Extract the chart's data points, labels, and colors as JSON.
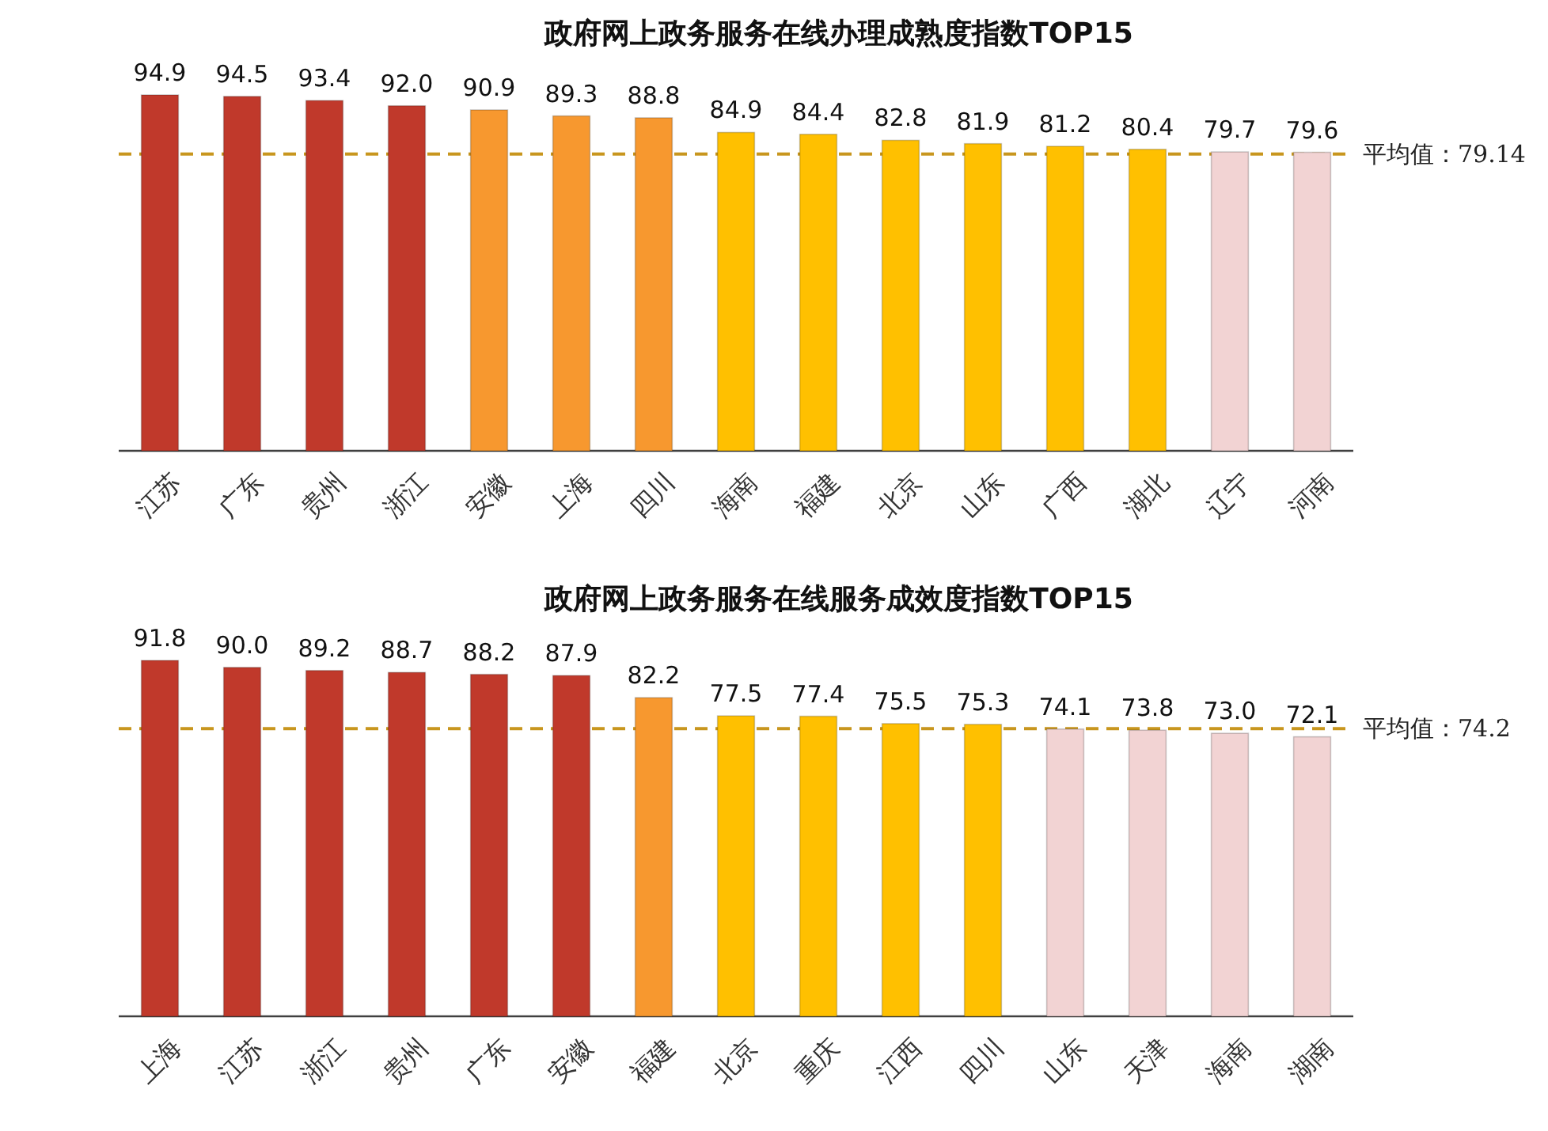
{
  "chart_data": [
    {
      "type": "bar",
      "title": "政府网上政务服务在线办理成熟度指数TOP15",
      "categories": [
        "江苏",
        "广东",
        "贵州",
        "浙江",
        "安徽",
        "上海",
        "四川",
        "海南",
        "福建",
        "北京",
        "山东",
        "广西",
        "湖北",
        "辽宁",
        "河南"
      ],
      "values": [
        94.9,
        94.5,
        93.4,
        92.0,
        90.9,
        89.3,
        88.8,
        84.9,
        84.4,
        82.8,
        81.9,
        81.2,
        80.4,
        79.7,
        79.6
      ],
      "value_labels": [
        "94.9",
        "94.5",
        "93.4",
        "92.0",
        "90.9",
        "89.3",
        "88.8",
        "84.9",
        "84.4",
        "82.8",
        "81.9",
        "81.2",
        "80.4",
        "79.7",
        "79.6"
      ],
      "colors": [
        "#c0392b",
        "#c0392b",
        "#c0392b",
        "#c0392b",
        "#f7982f",
        "#f7982f",
        "#f7982f",
        "#ffc000",
        "#ffc000",
        "#ffc000",
        "#ffc000",
        "#ffc000",
        "#ffc000",
        "#f2d3d3",
        "#f2d3d3"
      ],
      "ref_lines": [
        {
          "axis": "y",
          "value": 79.14,
          "label": "平均值：79.14",
          "color": "#c8961e",
          "line_style": "dashed"
        }
      ]
    },
    {
      "type": "bar",
      "title": "政府网上政务服务在线服务成效度指数TOP15",
      "categories": [
        "上海",
        "江苏",
        "浙江",
        "贵州",
        "广东",
        "安徽",
        "福建",
        "北京",
        "重庆",
        "江西",
        "四川",
        "山东",
        "天津",
        "海南",
        "湖南"
      ],
      "values": [
        91.8,
        90.0,
        89.2,
        88.7,
        88.2,
        87.9,
        82.2,
        77.5,
        77.4,
        75.5,
        75.3,
        74.1,
        73.8,
        73.0,
        72.1
      ],
      "value_labels": [
        "91.8",
        "90.0",
        "89.2",
        "88.7",
        "88.2",
        "87.9",
        "82.2",
        "77.5",
        "77.4",
        "75.5",
        "75.3",
        "74.1",
        "73.8",
        "73.0",
        "72.1"
      ],
      "colors": [
        "#c0392b",
        "#c0392b",
        "#c0392b",
        "#c0392b",
        "#c0392b",
        "#c0392b",
        "#f7982f",
        "#ffc000",
        "#ffc000",
        "#ffc000",
        "#ffc000",
        "#f2d3d3",
        "#f2d3d3",
        "#f2d3d3",
        "#f2d3d3"
      ],
      "ref_lines": [
        {
          "axis": "y",
          "value": 74.2,
          "label": "平均值：74.2",
          "color": "#c8961e",
          "line_style": "dashed"
        }
      ]
    }
  ]
}
